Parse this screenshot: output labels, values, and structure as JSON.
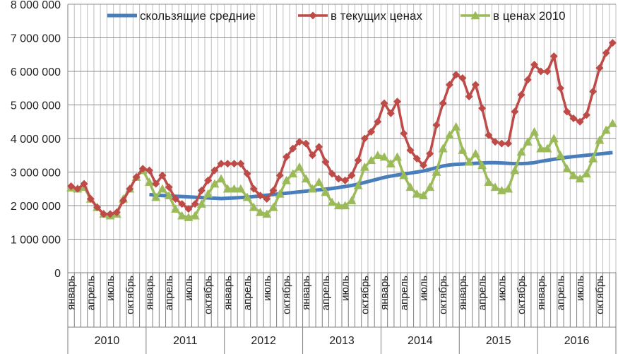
{
  "chart_data": {
    "type": "line",
    "ylim": [
      0,
      8000000
    ],
    "y_ticks": [
      {
        "value": 0,
        "label": "0"
      },
      {
        "value": 1000000,
        "label": "1 000 000"
      },
      {
        "value": 2000000,
        "label": "2 000 000"
      },
      {
        "value": 3000000,
        "label": "3 000 000"
      },
      {
        "value": 4000000,
        "label": "4 000 000"
      },
      {
        "value": 5000000,
        "label": "5 000 000"
      },
      {
        "value": 6000000,
        "label": "6 000 000"
      },
      {
        "value": 7000000,
        "label": "7 000 000"
      },
      {
        "value": 8000000,
        "label": "8 000 000"
      }
    ],
    "grid": {
      "horizontal": true,
      "vertical": true
    },
    "legend_position": "top",
    "years": [
      "2010",
      "2011",
      "2012",
      "2013",
      "2014",
      "2015",
      "2016"
    ],
    "month_labels": [
      {
        "month_index": 0,
        "label": "январь"
      },
      {
        "month_index": 3,
        "label": "апрель"
      },
      {
        "month_index": 6,
        "label": "июль"
      },
      {
        "month_index": 9,
        "label": "октябрь"
      }
    ],
    "series": [
      {
        "name": "скользящие средние",
        "color": "#4a7ebb",
        "marker": "none",
        "start_index": 12,
        "values": [
          2330000,
          2310000,
          2300000,
          2290000,
          2280000,
          2270000,
          2260000,
          2250000,
          2240000,
          2230000,
          2220000,
          2210000,
          2220000,
          2230000,
          2240000,
          2250000,
          2270000,
          2290000,
          2310000,
          2330000,
          2350000,
          2370000,
          2390000,
          2410000,
          2430000,
          2450000,
          2470000,
          2490000,
          2510000,
          2540000,
          2570000,
          2600000,
          2640000,
          2690000,
          2740000,
          2790000,
          2840000,
          2880000,
          2910000,
          2940000,
          2970000,
          3000000,
          3030000,
          3080000,
          3130000,
          3180000,
          3210000,
          3230000,
          3240000,
          3250000,
          3260000,
          3270000,
          3280000,
          3280000,
          3270000,
          3260000,
          3250000,
          3250000,
          3260000,
          3280000,
          3320000,
          3350000,
          3380000,
          3410000,
          3440000,
          3460000,
          3480000,
          3500000,
          3520000,
          3540000,
          3560000,
          3580000
        ]
      },
      {
        "name": "в текущих ценах",
        "color": "#be4b48",
        "marker": "diamond",
        "start_index": 0,
        "values": [
          2580000,
          2500000,
          2650000,
          2200000,
          1950000,
          1750000,
          1750000,
          1800000,
          2150000,
          2500000,
          2850000,
          3100000,
          3050000,
          2650000,
          2900000,
          2550000,
          2200000,
          2050000,
          1900000,
          2050000,
          2450000,
          2750000,
          3050000,
          3250000,
          3250000,
          3250000,
          3250000,
          2950000,
          2500000,
          2300000,
          2200000,
          2450000,
          2900000,
          3450000,
          3700000,
          3900000,
          3850000,
          3500000,
          3750000,
          3300000,
          2950000,
          2800000,
          2750000,
          2900000,
          3350000,
          4000000,
          4200000,
          4500000,
          5050000,
          4750000,
          5100000,
          4150000,
          3650000,
          3400000,
          3200000,
          3550000,
          4400000,
          5050000,
          5600000,
          5900000,
          5800000,
          5250000,
          5600000,
          4900000,
          4100000,
          3900000,
          3850000,
          3850000,
          4800000,
          5300000,
          5750000,
          6200000,
          6000000,
          6000000,
          6450000,
          5500000,
          4800000,
          4600000,
          4500000,
          4700000,
          5400000,
          6100000,
          6550000,
          6850000
        ]
      },
      {
        "name": "в ценах 2010",
        "color": "#9bbb59",
        "marker": "triangle",
        "start_index": 0,
        "values": [
          2530000,
          2500000,
          2550000,
          2200000,
          1950000,
          1750000,
          1700000,
          1750000,
          2200000,
          2500000,
          2850000,
          3050000,
          2700000,
          2250000,
          2500000,
          2300000,
          1900000,
          1700000,
          1650000,
          1700000,
          2050000,
          2350000,
          2650000,
          2800000,
          2500000,
          2500000,
          2500000,
          2250000,
          1950000,
          1800000,
          1750000,
          1950000,
          2350000,
          2750000,
          2950000,
          3150000,
          2800000,
          2500000,
          2700000,
          2400000,
          2100000,
          2000000,
          2000000,
          2150000,
          2600000,
          3150000,
          3350000,
          3500000,
          3450000,
          3250000,
          3450000,
          2900000,
          2550000,
          2350000,
          2300000,
          2550000,
          3000000,
          3700000,
          4100000,
          4350000,
          3650000,
          3300000,
          3550000,
          3200000,
          2700000,
          2550000,
          2450000,
          2500000,
          3050000,
          3600000,
          3900000,
          4200000,
          3700000,
          3700000,
          4000000,
          3500000,
          3100000,
          2900000,
          2800000,
          2950000,
          3400000,
          3950000,
          4250000,
          4450000
        ]
      }
    ]
  }
}
